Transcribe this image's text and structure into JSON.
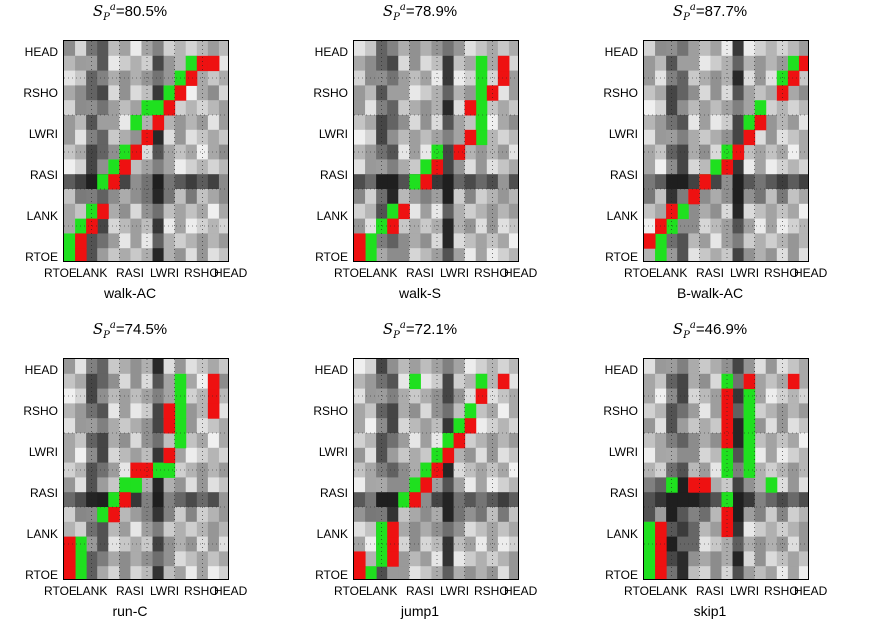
{
  "figure": {
    "panels": [
      {
        "id": "walk-AC",
        "title_prefix": "S",
        "title_sub": "P",
        "title_sup": "a",
        "title_value": "=80.5%",
        "caption": "walk-AC"
      },
      {
        "id": "walk-S",
        "title_prefix": "S",
        "title_sub": "P",
        "title_sup": "a",
        "title_value": "=78.9%",
        "caption": "walk-S"
      },
      {
        "id": "B-walk-AC",
        "title_prefix": "S",
        "title_sub": "P",
        "title_sup": "a",
        "title_value": "=87.7%",
        "caption": "B-walk-AC"
      },
      {
        "id": "run-C",
        "title_prefix": "S",
        "title_sub": "P",
        "title_sup": "a",
        "title_value": "=74.5%",
        "caption": "run-C"
      },
      {
        "id": "jump1",
        "title_prefix": "S",
        "title_sub": "P",
        "title_sup": "a",
        "title_value": "=72.1%",
        "caption": "jump1"
      },
      {
        "id": "skip1",
        "title_prefix": "S",
        "title_sub": "P",
        "title_sup": "a",
        "title_value": "=46.9%",
        "caption": "skip1"
      }
    ],
    "y_labels": [
      "HEAD",
      "RSHO",
      "LWRI",
      "RASI",
      "LANK",
      "RTOE"
    ],
    "x_labels": [
      "RTOE",
      "LANK",
      "RASI",
      "LWRI",
      "RSHO",
      "HEAD"
    ]
  },
  "chart_data": [
    {
      "type": "heatmap",
      "title": "S_P^a =80.5%",
      "caption": "walk-AC",
      "ylabels": [
        "HEAD",
        "RSHO",
        "LWRI",
        "RASI",
        "LANK",
        "RTOE"
      ],
      "xlabels": [
        "RTOE",
        "LANK",
        "RASI",
        "LWRI",
        "RSHO",
        "HEAD"
      ],
      "highlight_green": [
        [
          0,
          0
        ],
        [
          0,
          1
        ],
        [
          1,
          2
        ],
        [
          2,
          3
        ],
        [
          3,
          5
        ],
        [
          4,
          6
        ],
        [
          5,
          7
        ],
        [
          6,
          9
        ],
        [
          7,
          10
        ],
        [
          8,
          10
        ],
        [
          9,
          11
        ],
        [
          10,
          12
        ],
        [
          11,
          13
        ]
      ],
      "highlight_red": [
        [
          1,
          0
        ],
        [
          1,
          1
        ],
        [
          2,
          2
        ],
        [
          3,
          3
        ],
        [
          4,
          5
        ],
        [
          5,
          6
        ],
        [
          6,
          7
        ],
        [
          7,
          8
        ],
        [
          8,
          9
        ],
        [
          9,
          10
        ],
        [
          10,
          11
        ],
        [
          11,
          12
        ],
        [
          12,
          13
        ],
        [
          13,
          13
        ]
      ]
    },
    {
      "type": "heatmap",
      "title": "S_P^a =78.9%",
      "caption": "walk-S",
      "ylabels": [
        "HEAD",
        "RSHO",
        "LWRI",
        "RASI",
        "LANK",
        "RTOE"
      ],
      "xlabels": [
        "RTOE",
        "LANK",
        "RASI",
        "LWRI",
        "RSHO",
        "HEAD"
      ],
      "highlight_green": [
        [
          1,
          0
        ],
        [
          1,
          1
        ],
        [
          2,
          2
        ],
        [
          3,
          3
        ],
        [
          5,
          5
        ],
        [
          6,
          6
        ],
        [
          7,
          7
        ],
        [
          11,
          8
        ],
        [
          11,
          9
        ],
        [
          11,
          10
        ],
        [
          11,
          11
        ],
        [
          11,
          12
        ],
        [
          11,
          13
        ]
      ],
      "highlight_red": [
        [
          0,
          0
        ],
        [
          0,
          1
        ],
        [
          3,
          2
        ],
        [
          4,
          3
        ],
        [
          6,
          5
        ],
        [
          7,
          6
        ],
        [
          9,
          7
        ],
        [
          10,
          8
        ],
        [
          10,
          10
        ],
        [
          12,
          11
        ],
        [
          13,
          12
        ],
        [
          13,
          13
        ]
      ]
    },
    {
      "type": "heatmap",
      "title": "S_P^a =87.7%",
      "caption": "B-walk-AC",
      "ylabels": [
        "HEAD",
        "RSHO",
        "LWRI",
        "RASI",
        "LANK",
        "RTOE"
      ],
      "xlabels": [
        "RTOE",
        "LANK",
        "RASI",
        "LWRI",
        "RSHO",
        "HEAD"
      ],
      "highlight_green": [
        [
          1,
          0
        ],
        [
          1,
          1
        ],
        [
          2,
          2
        ],
        [
          3,
          3
        ],
        [
          5,
          5
        ],
        [
          6,
          6
        ],
        [
          7,
          7
        ],
        [
          9,
          9
        ],
        [
          10,
          10
        ],
        [
          12,
          12
        ],
        [
          13,
          13
        ]
      ],
      "highlight_red": [
        [
          0,
          1
        ],
        [
          1,
          2
        ],
        [
          2,
          3
        ],
        [
          4,
          4
        ],
        [
          5,
          5
        ],
        [
          7,
          6
        ],
        [
          8,
          7
        ],
        [
          9,
          8
        ],
        [
          10,
          9
        ],
        [
          12,
          11
        ],
        [
          13,
          12
        ],
        [
          14,
          13
        ]
      ]
    },
    {
      "type": "heatmap",
      "title": "S_P^a =74.5%",
      "caption": "run-C",
      "ylabels": [
        "HEAD",
        "RSHO",
        "LWRI",
        "RASI",
        "LANK",
        "RTOE"
      ],
      "xlabels": [
        "RTOE",
        "LANK",
        "RASI",
        "LWRI",
        "RSHO",
        "HEAD"
      ],
      "highlight_green": [
        [
          1,
          0
        ],
        [
          1,
          1
        ],
        [
          1,
          2
        ],
        [
          3,
          4
        ],
        [
          4,
          5
        ],
        [
          5,
          6
        ],
        [
          6,
          6
        ],
        [
          8,
          7
        ],
        [
          9,
          7
        ],
        [
          10,
          9
        ],
        [
          10,
          10
        ],
        [
          10,
          11
        ],
        [
          10,
          12
        ],
        [
          10,
          13
        ]
      ],
      "highlight_red": [
        [
          0,
          0
        ],
        [
          0,
          1
        ],
        [
          0,
          2
        ],
        [
          4,
          4
        ],
        [
          5,
          5
        ],
        [
          6,
          7
        ],
        [
          7,
          7
        ],
        [
          9,
          8
        ],
        [
          9,
          10
        ],
        [
          9,
          11
        ],
        [
          13,
          11
        ],
        [
          13,
          12
        ],
        [
          13,
          13
        ]
      ]
    },
    {
      "type": "heatmap",
      "title": "S_P^a =72.1%",
      "caption": "jump1",
      "ylabels": [
        "HEAD",
        "RSHO",
        "LWRI",
        "RASI",
        "LANK",
        "RTOE"
      ],
      "xlabels": [
        "RTOE",
        "LANK",
        "RASI",
        "LWRI",
        "RSHO",
        "HEAD"
      ],
      "highlight_green": [
        [
          1,
          0
        ],
        [
          2,
          1
        ],
        [
          2,
          2
        ],
        [
          2,
          3
        ],
        [
          4,
          5
        ],
        [
          5,
          6
        ],
        [
          6,
          7
        ],
        [
          7,
          8
        ],
        [
          8,
          9
        ],
        [
          9,
          10
        ],
        [
          10,
          11
        ],
        [
          11,
          13
        ],
        [
          5,
          13
        ]
      ],
      "highlight_red": [
        [
          0,
          0
        ],
        [
          0,
          1
        ],
        [
          3,
          1
        ],
        [
          3,
          2
        ],
        [
          3,
          3
        ],
        [
          5,
          5
        ],
        [
          6,
          6
        ],
        [
          7,
          7
        ],
        [
          8,
          8
        ],
        [
          9,
          9
        ],
        [
          10,
          10
        ],
        [
          11,
          12
        ],
        [
          13,
          13
        ]
      ]
    },
    {
      "type": "heatmap",
      "title": "S_P^a =46.9%",
      "caption": "skip1",
      "ylabels": [
        "HEAD",
        "RSHO",
        "LWRI",
        "RASI",
        "LANK",
        "RTOE"
      ],
      "xlabels": [
        "RTOE",
        "LANK",
        "RASI",
        "LWRI",
        "RSHO",
        "HEAD"
      ],
      "highlight_green": [
        [
          0,
          0
        ],
        [
          0,
          1
        ],
        [
          0,
          2
        ],
        [
          0,
          3
        ],
        [
          2,
          6
        ],
        [
          7,
          5
        ],
        [
          7,
          7
        ],
        [
          7,
          8
        ],
        [
          7,
          9
        ],
        [
          7,
          10
        ],
        [
          7,
          11
        ],
        [
          7,
          12
        ],
        [
          7,
          13
        ],
        [
          9,
          7
        ],
        [
          9,
          8
        ],
        [
          9,
          9
        ],
        [
          9,
          10
        ],
        [
          9,
          11
        ],
        [
          9,
          12
        ],
        [
          11,
          6
        ]
      ],
      "highlight_red": [
        [
          1,
          0
        ],
        [
          1,
          1
        ],
        [
          1,
          2
        ],
        [
          1,
          3
        ],
        [
          4,
          6
        ],
        [
          5,
          6
        ],
        [
          7,
          3
        ],
        [
          7,
          4
        ],
        [
          7,
          9
        ],
        [
          7,
          10
        ],
        [
          7,
          11
        ],
        [
          7,
          12
        ],
        [
          9,
          13
        ],
        [
          13,
          13
        ]
      ]
    }
  ]
}
